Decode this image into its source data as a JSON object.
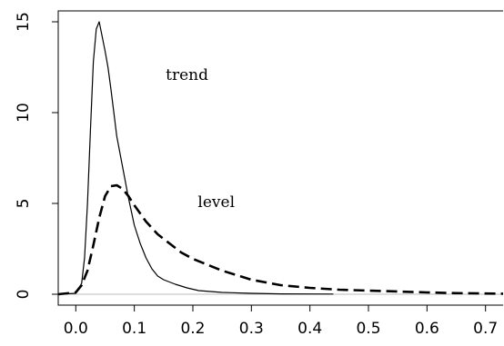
{
  "chart_data": {
    "type": "line",
    "title": "",
    "xlabel": "",
    "ylabel": "",
    "xlim": [
      -0.03,
      0.73
    ],
    "ylim": [
      -0.6,
      15.6
    ],
    "x_ticks": [
      "0.0",
      "0.1",
      "0.2",
      "0.3",
      "0.4",
      "0.5",
      "0.6",
      "0.7"
    ],
    "y_ticks": [
      "0",
      "5",
      "10",
      "15"
    ],
    "grid": false,
    "baseline": {
      "y": 0,
      "color": "#bbbbbb"
    },
    "annotations": [
      {
        "text": "trend",
        "x": 0.19,
        "y": 11.8
      },
      {
        "text": "level",
        "x": 0.24,
        "y": 4.8
      }
    ],
    "series": [
      {
        "style": "solid",
        "color": "#000000",
        "x": [
          -0.03,
          0.0,
          0.01,
          0.015,
          0.02,
          0.025,
          0.03,
          0.035,
          0.04,
          0.045,
          0.05,
          0.055,
          0.06,
          0.065,
          0.07,
          0.08,
          0.09,
          0.1,
          0.11,
          0.12,
          0.13,
          0.14,
          0.15,
          0.17,
          0.19,
          0.21,
          0.25,
          0.3,
          0.35,
          0.44
        ],
        "y": [
          0,
          0.05,
          0.6,
          2.0,
          5.0,
          9.0,
          12.8,
          14.6,
          15.0,
          14.2,
          13.4,
          12.5,
          11.3,
          10.0,
          8.7,
          7.0,
          5.3,
          3.8,
          2.8,
          2.0,
          1.4,
          1.0,
          0.8,
          0.55,
          0.35,
          0.2,
          0.1,
          0.05,
          0.02,
          0.01
        ]
      },
      {
        "style": "dashed",
        "color": "#000000",
        "x": [
          -0.03,
          0.0,
          0.01,
          0.02,
          0.03,
          0.04,
          0.05,
          0.06,
          0.07,
          0.08,
          0.09,
          0.1,
          0.12,
          0.14,
          0.16,
          0.18,
          0.2,
          0.25,
          0.3,
          0.35,
          0.4,
          0.45,
          0.5,
          0.55,
          0.6,
          0.65,
          0.73
        ],
        "y": [
          0,
          0.1,
          0.5,
          1.3,
          2.7,
          4.2,
          5.4,
          5.95,
          6.0,
          5.8,
          5.4,
          4.9,
          4.0,
          3.3,
          2.8,
          2.3,
          1.95,
          1.3,
          0.8,
          0.5,
          0.35,
          0.25,
          0.2,
          0.15,
          0.1,
          0.06,
          0.03
        ]
      }
    ]
  }
}
